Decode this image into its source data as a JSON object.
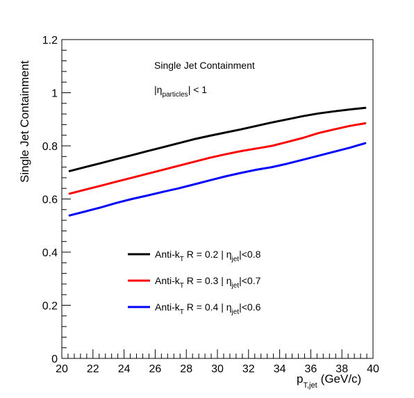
{
  "chart_data": {
    "type": "line",
    "title": "Single Jet Containment",
    "subtitle": {
      "prefix": "|η",
      "sub": "particles",
      "suffix": "| < 1"
    },
    "ylabel": "Single Jet Containment",
    "xlabel": {
      "main": "p",
      "sub": "T,jet",
      "unit": "(GeV/c)"
    },
    "xlim": [
      20,
      40
    ],
    "ylim": [
      0,
      1.2
    ],
    "x_ticks": [
      "20",
      "22",
      "24",
      "26",
      "28",
      "30",
      "32",
      "34",
      "36",
      "38",
      "40"
    ],
    "y_ticks": [
      "0",
      "0.2",
      "0.4",
      "0.6",
      "0.8",
      "1",
      "1.2"
    ],
    "grid": false,
    "legend_position": "bottom-left",
    "series": [
      {
        "legend": {
          "a": "Anti-k",
          "a_sub": "T",
          "b": " R = 0.2 | η",
          "b_sub": "jet",
          "c": "|<0.8"
        },
        "color": "#000000",
        "x": [
          20.5,
          21.5,
          22.5,
          23.5,
          24.5,
          25.5,
          26.5,
          27.5,
          28.5,
          29.5,
          30.5,
          31.5,
          32.5,
          33.5,
          34.5,
          35.5,
          36.5,
          37.5,
          38.5,
          39.5
        ],
        "y": [
          0.705,
          0.72,
          0.735,
          0.75,
          0.765,
          0.78,
          0.795,
          0.81,
          0.825,
          0.838,
          0.85,
          0.862,
          0.875,
          0.888,
          0.9,
          0.912,
          0.922,
          0.93,
          0.937,
          0.943
        ]
      },
      {
        "legend": {
          "a": "Anti-k",
          "a_sub": "T",
          "b": " R = 0.3 | η",
          "b_sub": "jet",
          "c": "|<0.7"
        },
        "color": "#ff0000",
        "x": [
          20.5,
          21.5,
          22.5,
          23.5,
          24.5,
          25.5,
          26.5,
          27.5,
          28.5,
          29.5,
          30.5,
          31.5,
          32.5,
          33.5,
          34.5,
          35.5,
          36.5,
          37.5,
          38.5,
          39.5
        ],
        "y": [
          0.62,
          0.635,
          0.65,
          0.665,
          0.68,
          0.695,
          0.71,
          0.725,
          0.74,
          0.755,
          0.768,
          0.78,
          0.79,
          0.8,
          0.815,
          0.83,
          0.848,
          0.862,
          0.875,
          0.885
        ]
      },
      {
        "legend": {
          "a": "Anti-k",
          "a_sub": "T",
          "b": " R = 0.4 | η",
          "b_sub": "jet",
          "c": "|<0.6"
        },
        "color": "#0000ff",
        "x": [
          20.5,
          21.5,
          22.5,
          23.5,
          24.5,
          25.5,
          26.5,
          27.5,
          28.5,
          29.5,
          30.5,
          31.5,
          32.5,
          33.5,
          34.5,
          35.5,
          36.5,
          37.5,
          38.5,
          39.5
        ],
        "y": [
          0.538,
          0.553,
          0.568,
          0.585,
          0.6,
          0.613,
          0.627,
          0.64,
          0.655,
          0.67,
          0.685,
          0.698,
          0.71,
          0.72,
          0.733,
          0.748,
          0.763,
          0.778,
          0.793,
          0.81
        ]
      }
    ]
  }
}
